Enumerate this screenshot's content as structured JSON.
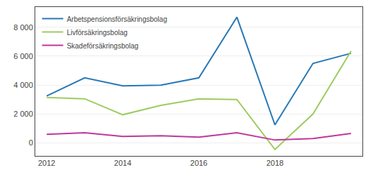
{
  "chart_data": {
    "type": "line",
    "x": [
      2012,
      2013,
      2014,
      2015,
      2016,
      2017,
      2018,
      2019,
      2020
    ],
    "series": [
      {
        "name": "Arbetspensionsförsäkringsbolag",
        "color": "#2878b5",
        "values": [
          3250,
          4500,
          3950,
          4000,
          4500,
          8700,
          1250,
          5500,
          6200
        ]
      },
      {
        "name": "Livförsäkringsbolag",
        "color": "#9dcc5f",
        "values": [
          3150,
          3050,
          1950,
          2600,
          3050,
          3000,
          -450,
          2000,
          6350
        ]
      },
      {
        "name": "Skadeförsäkringsbolag",
        "color": "#c0369c",
        "values": [
          600,
          700,
          450,
          500,
          400,
          700,
          200,
          300,
          650
        ]
      }
    ],
    "xlim": [
      2011.7,
      2020.3
    ],
    "xticks": [
      2012,
      2014,
      2016,
      2018
    ],
    "ylim": [
      -900,
      9400
    ],
    "yticks": [
      0,
      {
        "value": 2000,
        "label": "2 000"
      },
      {
        "value": 4000,
        "label": "4 000"
      },
      {
        "value": 6000,
        "label": "6 000"
      },
      {
        "value": 8000,
        "label": "8 000"
      }
    ],
    "grid": true,
    "legend": "upper left"
  }
}
